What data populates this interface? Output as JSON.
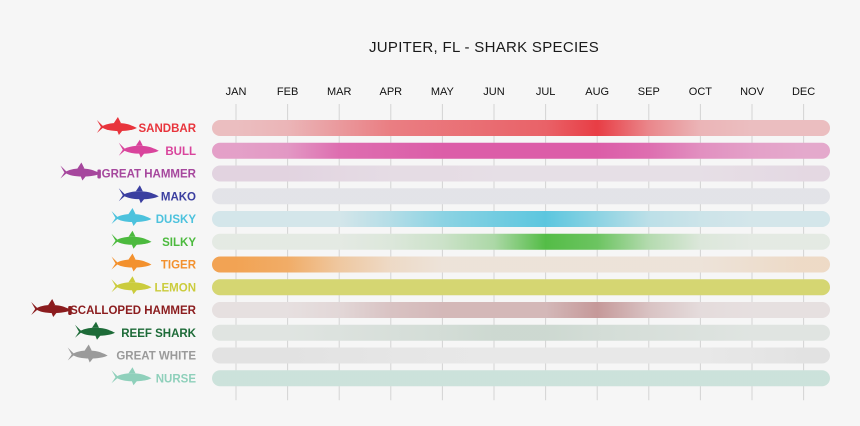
{
  "chart_data": {
    "type": "heatmap",
    "title": "JUPITER, FL - SHARK SPECIES",
    "categories": [
      "JAN",
      "FEB",
      "MAR",
      "APR",
      "MAY",
      "JUN",
      "JUL",
      "AUG",
      "SEP",
      "OCT",
      "NOV",
      "DEC"
    ],
    "series": [
      {
        "name": "SANDBAR",
        "color": "#e8343c",
        "values": [
          0.25,
          0.3,
          0.45,
          0.6,
          0.65,
          0.7,
          0.75,
          0.95,
          0.55,
          0.3,
          0.25,
          0.25
        ]
      },
      {
        "name": "BULL",
        "color": "#d9449c",
        "values": [
          0.45,
          0.5,
          0.75,
          0.8,
          0.85,
          0.85,
          0.85,
          0.85,
          0.75,
          0.55,
          0.45,
          0.4
        ]
      },
      {
        "name": "GREAT HAMMER",
        "color": "#a6479d",
        "values": [
          0.15,
          0.15,
          0.12,
          0.1,
          0.1,
          0.08,
          0.08,
          0.08,
          0.08,
          0.08,
          0.1,
          0.12
        ]
      },
      {
        "name": "MAKO",
        "color": "#3b3fa0",
        "values": [
          0.05,
          0.05,
          0.05,
          0.05,
          0.05,
          0.05,
          0.05,
          0.05,
          0.05,
          0.05,
          0.05,
          0.05
        ]
      },
      {
        "name": "DUSKY",
        "color": "#4cc2dd",
        "values": [
          0.15,
          0.15,
          0.15,
          0.35,
          0.6,
          0.75,
          0.9,
          0.6,
          0.3,
          0.2,
          0.15,
          0.15
        ]
      },
      {
        "name": "SILKY",
        "color": "#4cba3e",
        "values": [
          0.05,
          0.05,
          0.05,
          0.1,
          0.2,
          0.4,
          0.95,
          0.8,
          0.35,
          0.1,
          0.05,
          0.05
        ]
      },
      {
        "name": "TIGER",
        "color": "#f3912e",
        "values": [
          0.8,
          0.7,
          0.4,
          0.2,
          0.1,
          0.1,
          0.1,
          0.1,
          0.1,
          0.1,
          0.15,
          0.2
        ]
      },
      {
        "name": "LEMON",
        "color": "#cbcc3d",
        "values": [
          0.7,
          0.7,
          0.7,
          0.7,
          0.7,
          0.7,
          0.7,
          0.7,
          0.7,
          0.7,
          0.7,
          0.7
        ]
      },
      {
        "name": "SCALLOPED HAMMER",
        "color": "#8b1c1e",
        "values": [
          0.06,
          0.06,
          0.1,
          0.2,
          0.25,
          0.25,
          0.25,
          0.4,
          0.2,
          0.08,
          0.06,
          0.06
        ]
      },
      {
        "name": "REEF SHARK",
        "color": "#1d6b38",
        "values": [
          0.06,
          0.06,
          0.08,
          0.1,
          0.12,
          0.15,
          0.15,
          0.12,
          0.1,
          0.08,
          0.06,
          0.06
        ]
      },
      {
        "name": "GREAT WHITE",
        "color": "#9a9a9a",
        "values": [
          0.12,
          0.12,
          0.1,
          0.08,
          0.06,
          0.05,
          0.05,
          0.05,
          0.05,
          0.05,
          0.08,
          0.12
        ]
      },
      {
        "name": "NURSE",
        "color": "#8fd0bb",
        "values": [
          0.35,
          0.35,
          0.35,
          0.35,
          0.35,
          0.35,
          0.35,
          0.35,
          0.35,
          0.35,
          0.35,
          0.35
        ]
      }
    ]
  }
}
